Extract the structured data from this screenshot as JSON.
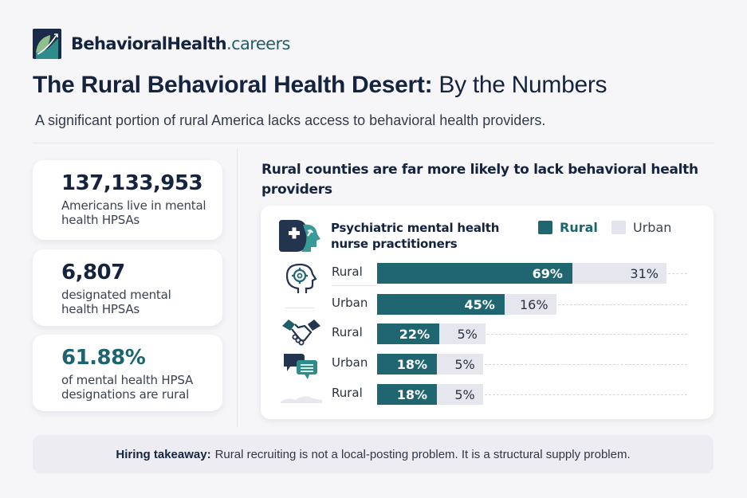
{
  "brand": {
    "name_bold": "BehavioralHealth",
    "name_light": ".careers"
  },
  "header": {
    "title_bold": "The Rural Behavioral Health Desert:",
    "title_light": "By the Numbers",
    "subtitle": "A significant portion of rural America lacks access to behavioral health providers."
  },
  "stats": [
    {
      "value": "137,133,953",
      "description": "Americans live in mental health HPSAs"
    },
    {
      "value": "6,807",
      "description": "designated mental health HPSAs"
    },
    {
      "value": "61.88%",
      "description": "of mental health HPSA designations are rural"
    }
  ],
  "colors": {
    "rural": "#1f6671",
    "urban": "#e5e6ee",
    "navy": "#15233f"
  },
  "chart_data": {
    "type": "bar",
    "orientation": "horizontal-stacked",
    "title": "Rural counties are far more likely to lack behavioral health providers",
    "subtitle": "Psychiatric mental health nurse practitioners",
    "legend": [
      {
        "name": "Rural",
        "color": "#1f6671"
      },
      {
        "name": "Urban",
        "color": "#e5e6ee"
      }
    ],
    "legend_position": "top-right",
    "categories": [
      "Rural",
      "Urban",
      "Rural",
      "Urban",
      "Rural"
    ],
    "icons": [
      "brain-gear-icon",
      "none",
      "handshake-icon",
      "chat-bubbles-icon",
      "landscape-icon"
    ],
    "series": [
      {
        "name": "Rural",
        "values": [
          69,
          45,
          22,
          18,
          18
        ],
        "labels": [
          "69%",
          "45%",
          "22%",
          "18%",
          "18%"
        ]
      },
      {
        "name": "Urban",
        "values": [
          31,
          16,
          5,
          5,
          5
        ],
        "labels": [
          "31%",
          "16%",
          "5%",
          "5%",
          "5%"
        ]
      }
    ],
    "xlim": [
      0,
      100
    ],
    "grid": false
  },
  "footer": {
    "takeaway_label": "Hiring takeaway:",
    "takeaway_text": "Rural recruiting is not a local-posting problem. It is a structural supply problem."
  }
}
